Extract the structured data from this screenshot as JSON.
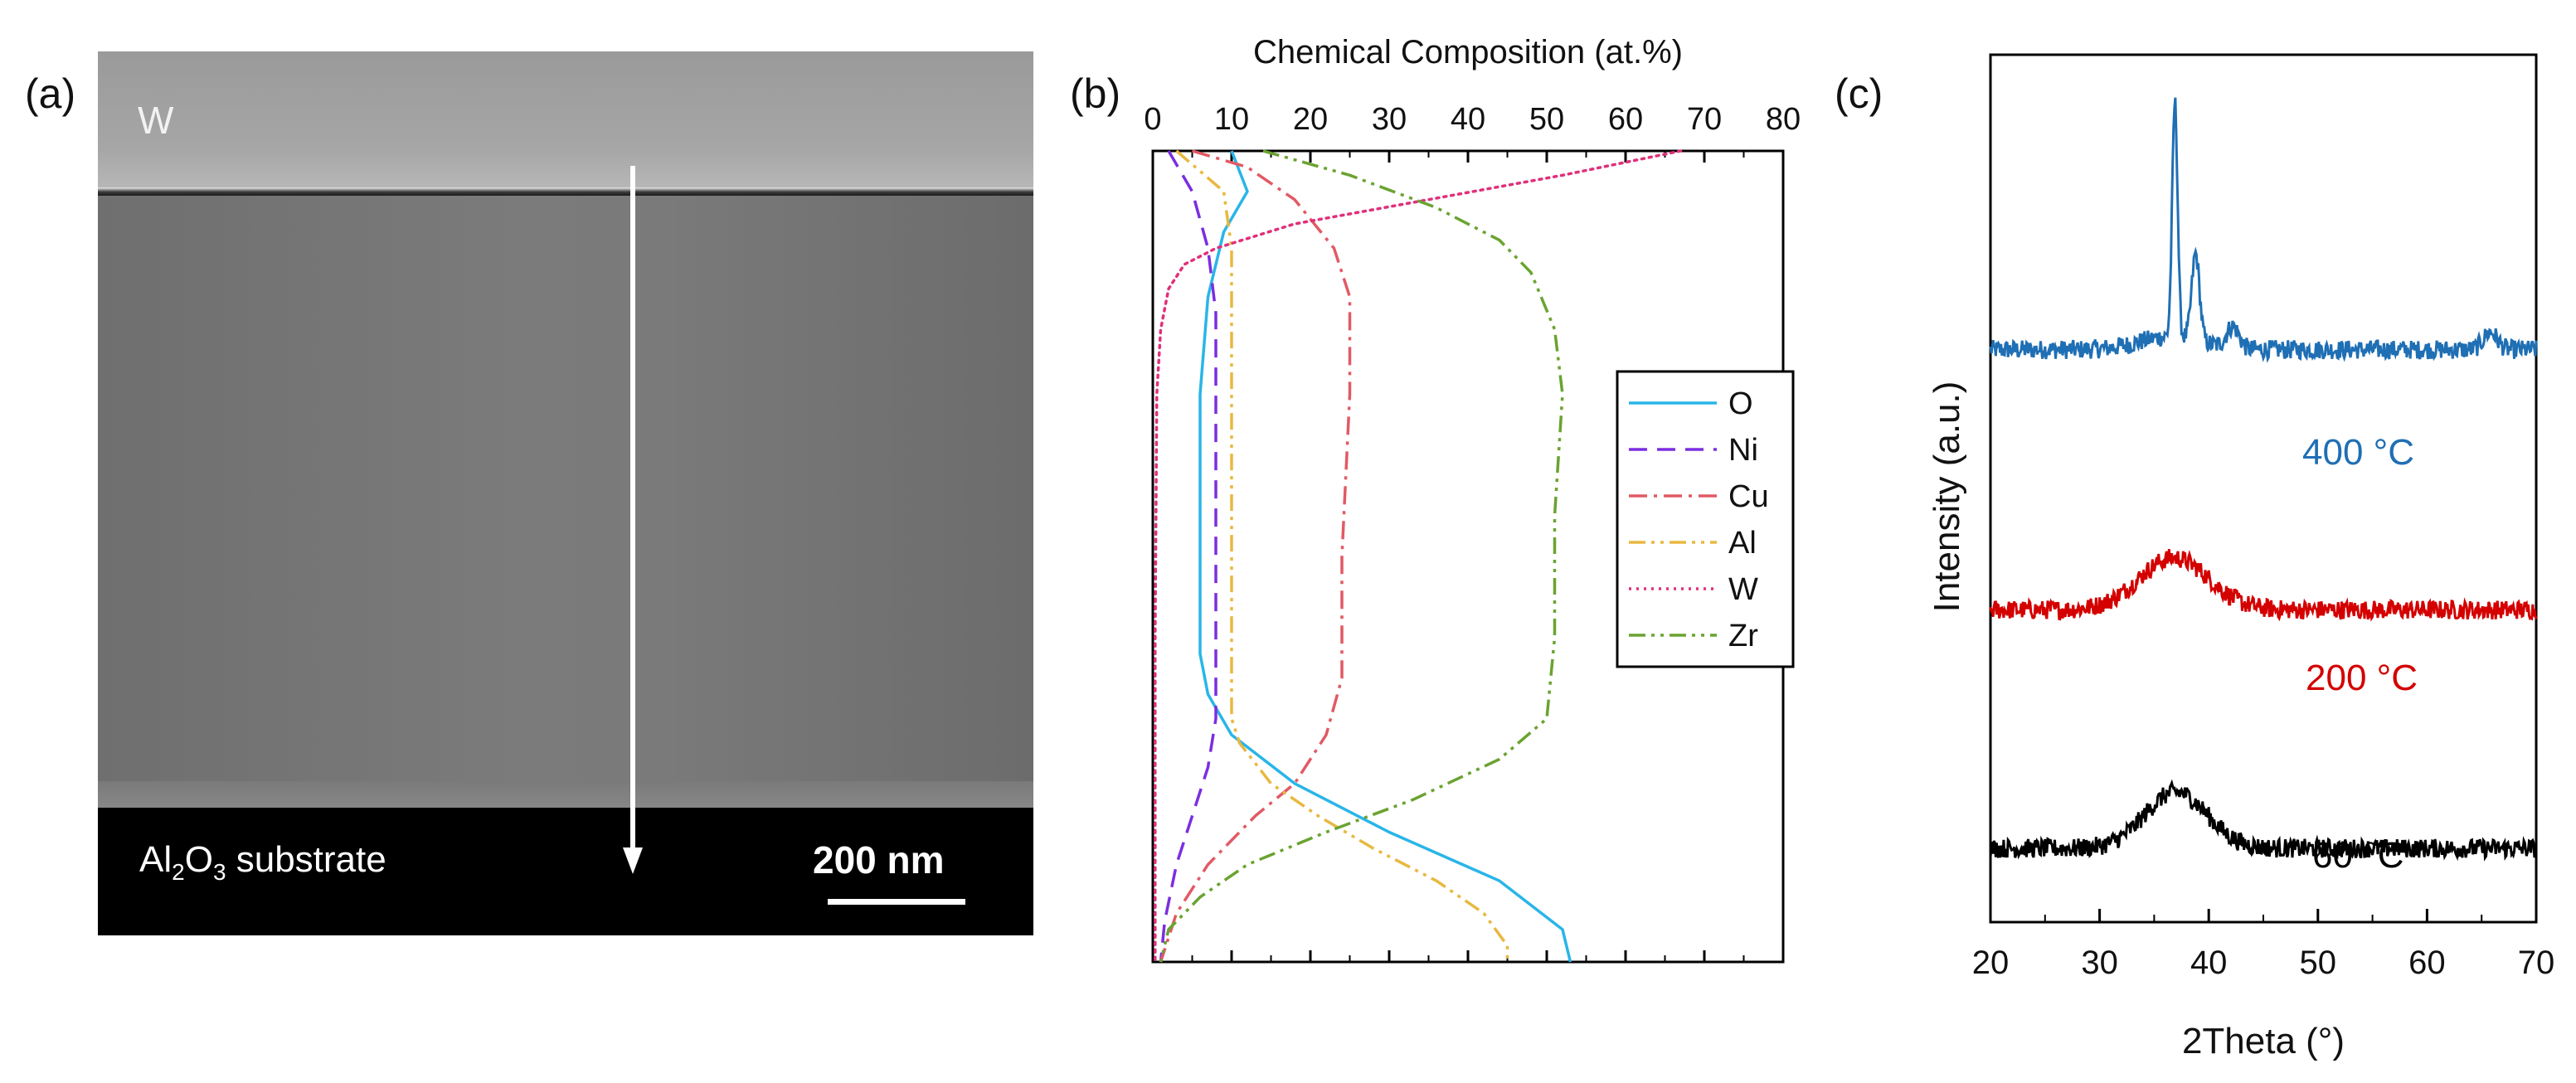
{
  "panels": {
    "a": {
      "label": "(a)",
      "layer_label": "W",
      "substrate_label_main": "Al",
      "substrate_sub1": "2",
      "substrate_mid": "O",
      "substrate_sub2": "3",
      "substrate_rest": " substrate",
      "scale_bar": "200 nm"
    },
    "b": {
      "label": "(b)"
    },
    "c": {
      "label": "(c)"
    }
  },
  "chart_data": [
    {
      "type": "line",
      "title": "",
      "xlabel": "Chemical Composition (at.%)",
      "ylabel": "",
      "xlim": [
        0,
        80
      ],
      "x_ticks": [
        "0",
        "10",
        "20",
        "30",
        "40",
        "50",
        "60",
        "70",
        "80"
      ],
      "x_axis_position": "top",
      "y_axis": "depth (top to bottom, unlabeled)",
      "ylim": [
        0,
        1
      ],
      "grid": false,
      "legend_position": "right",
      "series": [
        {
          "name": "O",
          "color": "#29b5e8",
          "style": "solid",
          "points": [
            [
              10,
              0.0
            ],
            [
              12,
              0.05
            ],
            [
              9,
              0.1
            ],
            [
              7,
              0.18
            ],
            [
              6,
              0.3
            ],
            [
              6,
              0.5
            ],
            [
              6,
              0.62
            ],
            [
              7,
              0.67
            ],
            [
              10,
              0.72
            ],
            [
              18,
              0.78
            ],
            [
              30,
              0.84
            ],
            [
              44,
              0.9
            ],
            [
              52,
              0.96
            ],
            [
              53,
              1.0
            ]
          ]
        },
        {
          "name": "Ni",
          "color": "#7b2ee0",
          "style": "dashed",
          "points": [
            [
              2,
              0.0
            ],
            [
              5,
              0.05
            ],
            [
              7,
              0.12
            ],
            [
              8,
              0.2
            ],
            [
              8,
              0.4
            ],
            [
              8,
              0.6
            ],
            [
              8,
              0.7
            ],
            [
              7,
              0.76
            ],
            [
              5,
              0.82
            ],
            [
              3,
              0.88
            ],
            [
              1.5,
              0.95
            ],
            [
              1,
              1.0
            ]
          ]
        },
        {
          "name": "Cu",
          "color": "#e15a64",
          "style": "dashdot",
          "points": [
            [
              5,
              0.0
            ],
            [
              12,
              0.02
            ],
            [
              18,
              0.06
            ],
            [
              23,
              0.12
            ],
            [
              25,
              0.18
            ],
            [
              25,
              0.3
            ],
            [
              24,
              0.5
            ],
            [
              24,
              0.65
            ],
            [
              22,
              0.72
            ],
            [
              18,
              0.78
            ],
            [
              13,
              0.82
            ],
            [
              7,
              0.88
            ],
            [
              3,
              0.94
            ],
            [
              1,
              1.0
            ]
          ]
        },
        {
          "name": "Al",
          "color": "#e8b840",
          "style": "dashdotdot",
          "points": [
            [
              3,
              0.0
            ],
            [
              9,
              0.05
            ],
            [
              10,
              0.12
            ],
            [
              10,
              0.2
            ],
            [
              10,
              0.5
            ],
            [
              10,
              0.7
            ],
            [
              11,
              0.73
            ],
            [
              15,
              0.78
            ],
            [
              21,
              0.82
            ],
            [
              28,
              0.86
            ],
            [
              36,
              0.9
            ],
            [
              42,
              0.94
            ],
            [
              45,
              0.98
            ],
            [
              45,
              1.0
            ]
          ]
        },
        {
          "name": "W",
          "color": "#e0307a",
          "style": "dotted",
          "points": [
            [
              67,
              0.0
            ],
            [
              52,
              0.03
            ],
            [
              35,
              0.06
            ],
            [
              18,
              0.09
            ],
            [
              8,
              0.12
            ],
            [
              4,
              0.14
            ],
            [
              2,
              0.17
            ],
            [
              1,
              0.22
            ],
            [
              0.5,
              0.3
            ],
            [
              0.3,
              0.6
            ],
            [
              0.3,
              1.0
            ]
          ]
        },
        {
          "name": "Zr",
          "color": "#6aa331",
          "style": "dashdotdot",
          "points": [
            [
              14,
              0.0
            ],
            [
              25,
              0.03
            ],
            [
              36,
              0.07
            ],
            [
              44,
              0.11
            ],
            [
              48,
              0.15
            ],
            [
              51,
              0.22
            ],
            [
              52,
              0.3
            ],
            [
              51,
              0.45
            ],
            [
              51,
              0.6
            ],
            [
              50,
              0.7
            ],
            [
              44,
              0.75
            ],
            [
              33,
              0.8
            ],
            [
              22,
              0.84
            ],
            [
              12,
              0.88
            ],
            [
              6,
              0.92
            ],
            [
              2,
              0.96
            ],
            [
              1,
              1.0
            ]
          ]
        }
      ]
    },
    {
      "type": "line",
      "title": "",
      "xlabel": "2Theta (°)",
      "ylabel": "Intensity (a.u.)",
      "xlim": [
        20,
        70
      ],
      "x_ticks": [
        "20",
        "30",
        "40",
        "50",
        "60",
        "70"
      ],
      "grid": false,
      "series": [
        {
          "name": "400 °C",
          "color": "#1f6fb4",
          "baseline": 0.66,
          "peaks": [
            [
              36.9,
              0.27,
              0.35
            ],
            [
              38.8,
              0.1,
              0.5
            ],
            [
              42.2,
              0.025,
              0.8
            ],
            [
              65.8,
              0.02,
              0.9
            ]
          ],
          "broad": [
            [
              36.5,
              0.015,
              4
            ]
          ]
        },
        {
          "name": "200 °C",
          "color": "#d40000",
          "baseline": 0.36,
          "peaks": [],
          "broad": [
            [
              36.8,
              0.06,
              4.5
            ]
          ]
        },
        {
          "name": "60 °C",
          "color": "#000000",
          "baseline": 0.085,
          "peaks": [],
          "broad": [
            [
              37.0,
              0.065,
              4.0
            ]
          ]
        }
      ],
      "annotations": [
        "400 °C",
        "200 °C",
        "60 °C"
      ]
    }
  ]
}
